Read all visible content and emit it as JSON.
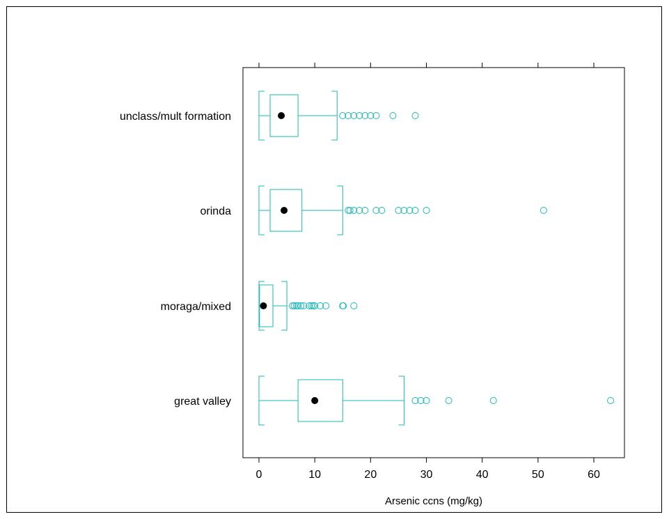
{
  "chart_data": {
    "type": "boxplot",
    "orientation": "horizontal",
    "xlabel": "Arsenic ccns (mg/kg)",
    "xlim": [
      -3,
      66
    ],
    "xticks": [
      0,
      10,
      20,
      30,
      40,
      50,
      60
    ],
    "categories": [
      "great valley",
      "moraga/mixed",
      "orinda",
      "unclass/mult formation"
    ],
    "boxes": [
      {
        "category": "great valley",
        "whisker_low": 0,
        "q1": 7,
        "median": 10,
        "q3": 15,
        "whisker_high": 26,
        "outliers": [
          28,
          29,
          30,
          34,
          42,
          63
        ]
      },
      {
        "category": "moraga/mixed",
        "whisker_low": 0,
        "q1": 0.1,
        "median": 0.8,
        "q3": 2.5,
        "whisker_high": 5,
        "outliers": [
          6,
          6.3,
          6.7,
          7,
          7.5,
          8,
          9,
          9.4,
          9.7,
          10,
          11,
          12,
          15,
          15.1,
          17
        ]
      },
      {
        "category": "orinda",
        "whisker_low": 0,
        "q1": 2,
        "median": 4.5,
        "q3": 7.7,
        "whisker_high": 15,
        "outliers": [
          16,
          16.3,
          17,
          18,
          19,
          21,
          22,
          25,
          26,
          27,
          28,
          30,
          51
        ]
      },
      {
        "category": "unclass/mult formation",
        "whisker_low": 0,
        "q1": 2,
        "median": 4,
        "q3": 7,
        "whisker_high": 14,
        "outliers": [
          15,
          16,
          17,
          18,
          19,
          20,
          21,
          24,
          28
        ]
      }
    ],
    "box_color": "#1ab8b8",
    "median_marker_color": "#000000",
    "grid": false
  }
}
